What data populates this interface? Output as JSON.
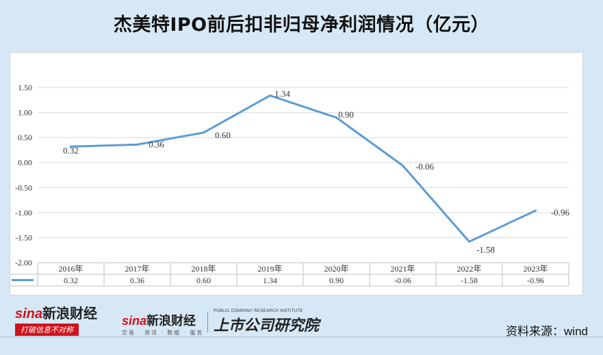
{
  "title": "杰美特IPO前后扣非归母净利润情况（亿元）",
  "source": "资料来源：wind",
  "logos": {
    "sina_finance": {
      "brand_sina": "sina",
      "brand_cn": "新浪财经",
      "slogan": "打破信息不对称"
    },
    "sina_finance_small": {
      "brand_sina": "sina",
      "brand_cn": "新浪财经",
      "sub": "交易 · 资讯 · 数据 · 服务"
    },
    "listed_company_institute": {
      "en": "PUBLIC COMPANY RESEARCH INSTITUTE",
      "cn": "上市公司研究院"
    }
  },
  "colors": {
    "line": "#5b9bd5",
    "grid": "#d9d9d9",
    "background": "#d6e8f6"
  },
  "chart_data": {
    "type": "line",
    "title": "杰美特IPO前后扣非归母净利润情况（亿元）",
    "categories": [
      "2016年",
      "2017年",
      "2018年",
      "2019年",
      "2020年",
      "2021年",
      "2022年",
      "2023年"
    ],
    "series": [
      {
        "name": "",
        "values": [
          0.32,
          0.36,
          0.6,
          1.34,
          0.9,
          -0.06,
          -1.58,
          -0.96
        ]
      }
    ],
    "value_labels": [
      "0.32",
      "0.36",
      "0.60",
      "1.34",
      "0.90",
      "-0.06",
      "-1.58",
      "-0.96"
    ],
    "yticks": [
      "1.50",
      "1.00",
      "0.50",
      "0.00",
      "-0.50",
      "-1.00",
      "-1.50",
      "-2.00"
    ],
    "ylim": [
      -2.0,
      1.5
    ],
    "grid": true,
    "legend": "data-table",
    "xlabel": "",
    "ylabel": ""
  }
}
